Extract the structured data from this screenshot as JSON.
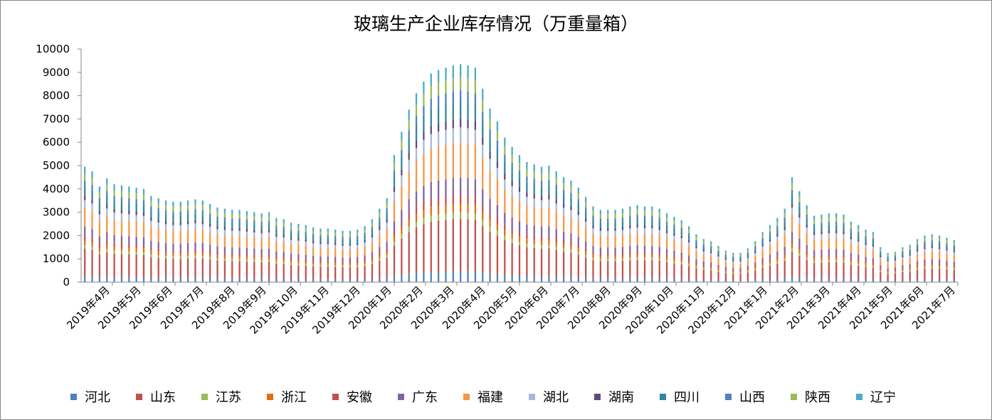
{
  "chart_data": {
    "type": "bar",
    "stacked": true,
    "title": "玻璃生产企业库存情况（万重量箱）",
    "xlabel": "",
    "ylabel": "",
    "ylim": [
      0,
      10000
    ],
    "yticks": [
      0,
      1000,
      2000,
      3000,
      4000,
      5000,
      6000,
      7000,
      8000,
      9000,
      10000
    ],
    "grid": false,
    "legend_position": "bottom",
    "month_labels": [
      "2019年4月",
      "2019年5月",
      "2019年6月",
      "2019年7月",
      "2019年8月",
      "2019年9月",
      "2019年10月",
      "2019年11月",
      "2019年12月",
      "2020年1月",
      "2020年2月",
      "2020年3月",
      "2020年4月",
      "2020年5月",
      "2020年6月",
      "2020年7月",
      "2020年8月",
      "2020年9月",
      "2020年10月",
      "2020年11月",
      "2020年12月",
      "2021年1月",
      "2021年2月",
      "2021年3月",
      "2021年4月",
      "2021年5月",
      "2021年6月",
      "2021年7月"
    ],
    "weekly_totals": [
      4950,
      4750,
      4100,
      4450,
      4200,
      4150,
      4100,
      4050,
      4000,
      3700,
      3600,
      3500,
      3450,
      3450,
      3500,
      3550,
      3500,
      3350,
      3200,
      3150,
      3100,
      3100,
      3050,
      3000,
      2950,
      3000,
      2750,
      2700,
      2550,
      2500,
      2450,
      2350,
      2300,
      2300,
      2250,
      2200,
      2200,
      2250,
      2400,
      2700,
      3150,
      3600,
      5450,
      6450,
      7400,
      8100,
      8600,
      8950,
      9100,
      9200,
      9300,
      9350,
      9300,
      9200,
      8300,
      7450,
      6900,
      6200,
      5800,
      5450,
      5150,
      5050,
      4950,
      5000,
      4750,
      4500,
      4350,
      4050,
      3650,
      3250,
      3100,
      3100,
      3100,
      3150,
      3250,
      3300,
      3250,
      3250,
      3150,
      2950,
      2800,
      2650,
      2400,
      2050,
      1850,
      1750,
      1550,
      1350,
      1250,
      1250,
      1450,
      1750,
      2150,
      2450,
      2750,
      3150,
      4500,
      3900,
      3300,
      2850,
      2900,
      2950,
      2950,
      2900,
      2600,
      2450,
      2250,
      2150,
      1500,
      1250,
      1300,
      1500,
      1600,
      1850,
      2000,
      2050,
      2000,
      1900,
      1800
    ],
    "region_share": [
      0.05,
      0.24,
      0.03,
      0.04,
      0.04,
      0.08,
      0.16,
      0.07,
      0.04,
      0.08,
      0.05,
      0.06,
      0.06
    ],
    "series": [
      {
        "name": "河北",
        "color": "#4F81BD"
      },
      {
        "name": "山东",
        "color": "#C0504D"
      },
      {
        "name": "江苏",
        "color": "#9BBB59"
      },
      {
        "name": "浙江",
        "color": "#E46C0A"
      },
      {
        "name": "安徽",
        "color": "#C0504D"
      },
      {
        "name": "广东",
        "color": "#8064A2"
      },
      {
        "name": "福建",
        "color": "#F79646"
      },
      {
        "name": "湖北",
        "color": "#A6B9DA"
      },
      {
        "name": "湖南",
        "color": "#60497A"
      },
      {
        "name": "四川",
        "color": "#31859C"
      },
      {
        "name": "山西",
        "color": "#4F81BD"
      },
      {
        "name": "陕西",
        "color": "#9BBB59"
      },
      {
        "name": "辽宁",
        "color": "#4BACC6"
      }
    ]
  }
}
